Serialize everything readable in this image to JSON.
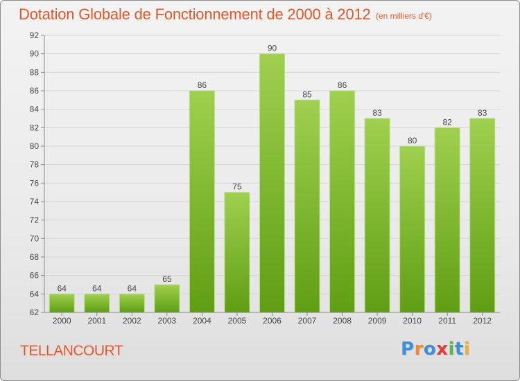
{
  "title": "Dotation Globale de Fonctionnement de 2000 à 2012",
  "subtitle": "(en milliers d'€)",
  "commune": "TELLANCOURT",
  "logo": {
    "text": "Proxiti",
    "colors": [
      "#3c8fd8",
      "#f08a2a",
      "#3c8fd8",
      "#e23b3b",
      "#58b84a",
      "#3c8fd8",
      "#f0b22a"
    ]
  },
  "colors": {
    "bar_top": "#9fd04f",
    "bar_bottom": "#5f9e12",
    "text_accent": "#e0572b",
    "grid": "#d6d6d6"
  },
  "chart_data": {
    "type": "bar",
    "categories": [
      "2000",
      "2001",
      "2002",
      "2003",
      "2004",
      "2005",
      "2006",
      "2007",
      "2008",
      "2009",
      "2010",
      "2011",
      "2012"
    ],
    "values": [
      64,
      64,
      64,
      65,
      86,
      75,
      90,
      85,
      86,
      83,
      80,
      82,
      83
    ],
    "ylim": [
      62,
      92
    ],
    "yticks": [
      62,
      64,
      66,
      68,
      70,
      72,
      74,
      76,
      78,
      80,
      82,
      84,
      86,
      88,
      90,
      92
    ],
    "grid": true,
    "data_labels": true
  }
}
